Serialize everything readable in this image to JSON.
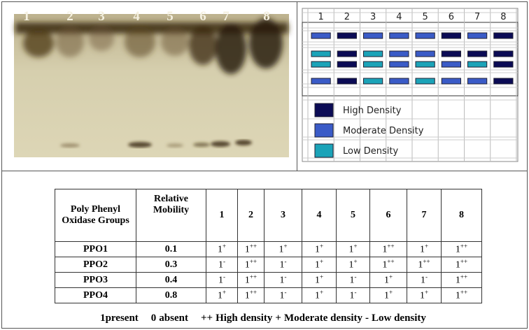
{
  "gel": {
    "lanes": [
      "1",
      "2",
      "3",
      "4",
      "5",
      "6",
      "7",
      "8"
    ]
  },
  "schematic": {
    "columns": [
      "1",
      "2",
      "3",
      "4",
      "5",
      "6",
      "7",
      "8"
    ],
    "legend": [
      {
        "label": "High Density",
        "color": "#0b0b55"
      },
      {
        "label": "Moderate Density",
        "color": "#3a5bc7"
      },
      {
        "label": "Low Density",
        "color": "#1ba3b8"
      }
    ]
  },
  "table": {
    "header": {
      "group": "Poly Phenyl Oxidase Groups",
      "mobility": "Relative Mobility",
      "lanes": [
        "1",
        "2",
        "3",
        "4",
        "5",
        "6",
        "7",
        "8"
      ]
    },
    "rows": [
      {
        "group": "PPO1",
        "mobility": "0.1",
        "cells": [
          {
            "n": "1",
            "mark": "+"
          },
          {
            "n": "1",
            "mark": "++"
          },
          {
            "n": "1",
            "mark": "+"
          },
          {
            "n": "1",
            "mark": "+"
          },
          {
            "n": "1",
            "mark": "+"
          },
          {
            "n": "1",
            "mark": "++"
          },
          {
            "n": "1",
            "mark": "+"
          },
          {
            "n": "1",
            "mark": "++"
          }
        ]
      },
      {
        "group": "PPO2",
        "mobility": "0.3",
        "cells": [
          {
            "n": "1",
            "mark": "-"
          },
          {
            "n": "1",
            "mark": "++"
          },
          {
            "n": "1",
            "mark": "-"
          },
          {
            "n": "1",
            "mark": "+"
          },
          {
            "n": "1",
            "mark": "+"
          },
          {
            "n": "1",
            "mark": "++"
          },
          {
            "n": "1",
            "mark": "++"
          },
          {
            "n": "1",
            "mark": "++"
          }
        ]
      },
      {
        "group": "PPO3",
        "mobility": "0.4",
        "cells": [
          {
            "n": "1",
            "mark": "-"
          },
          {
            "n": "1",
            "mark": "++"
          },
          {
            "n": "1",
            "mark": "-"
          },
          {
            "n": "1",
            "mark": "+"
          },
          {
            "n": "1",
            "mark": "-"
          },
          {
            "n": "1",
            "mark": "+"
          },
          {
            "n": "1",
            "mark": "-"
          },
          {
            "n": "1",
            "mark": "++"
          }
        ]
      },
      {
        "group": "PPO4",
        "mobility": "0.8",
        "cells": [
          {
            "n": "1",
            "mark": "+"
          },
          {
            "n": "1",
            "mark": "++"
          },
          {
            "n": "1",
            "mark": "-"
          },
          {
            "n": "1",
            "mark": "+"
          },
          {
            "n": "1",
            "mark": "-"
          },
          {
            "n": "1",
            "mark": "+"
          },
          {
            "n": "1",
            "mark": "+"
          },
          {
            "n": "1",
            "mark": "++"
          }
        ]
      }
    ]
  },
  "footer": [
    {
      "symbol": "1",
      "text": "present"
    },
    {
      "symbol": "0",
      "text": "absent"
    },
    {
      "symbol": "++",
      "text": "High density"
    },
    {
      "symbol": "+",
      "text": "Moderate density"
    },
    {
      "symbol": "-",
      "text": "Low density"
    }
  ]
}
